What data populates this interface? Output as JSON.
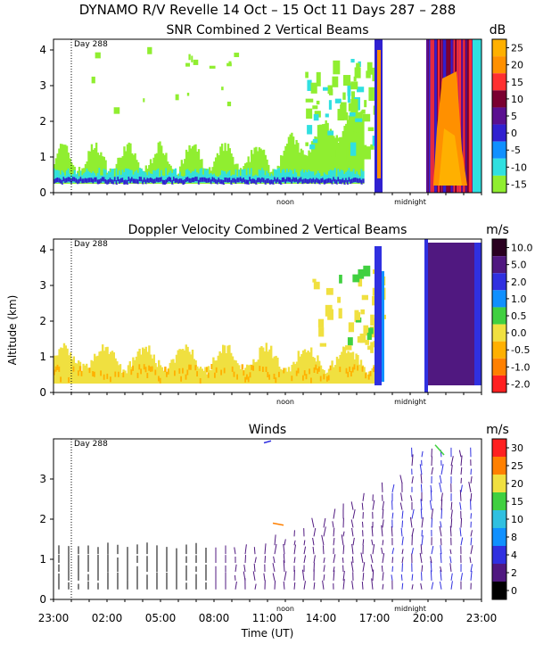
{
  "title": "DYNAMO R/V Revelle  14 Oct – 15 Oct 11 Days 287 – 288",
  "shared": {
    "day_marker": "Day 288",
    "noon_label": "noon",
    "midnight_label": "midnight",
    "ylabel": "Altitude (km)",
    "xlabel": "Time (UT)",
    "time_ticks": [
      "23:00",
      "02:00",
      "05:00",
      "08:00",
      "11:00",
      "14:00",
      "17:00",
      "20:00",
      "23:00"
    ]
  },
  "chart_data": [
    {
      "type": "heatmap",
      "title": "SNR Combined 2 Vertical Beams",
      "units": "dB",
      "ylim": [
        0,
        4.3
      ],
      "yticks": [
        0,
        1,
        2,
        3,
        4
      ],
      "colorbar_labels": [
        "25",
        "20",
        "15",
        "10",
        "5",
        "0",
        "-5",
        "-10",
        "-15"
      ],
      "colorbar_colors": [
        "#ffb000",
        "#ff9000",
        "#ff3030",
        "#7a0030",
        "#5a1090",
        "#3020d0",
        "#1090ff",
        "#30e0e0",
        "#90ee30"
      ]
    },
    {
      "type": "heatmap",
      "title": "Doppler Velocity Combined 2 Vertical Beams",
      "units": "m/s",
      "ylim": [
        0,
        4.3
      ],
      "yticks": [
        0,
        1,
        2,
        3,
        4
      ],
      "colorbar_labels": [
        "10.0",
        "5.0",
        "2.0",
        "1.0",
        "0.5",
        "0.0",
        "-0.5",
        "-1.0",
        "-2.0"
      ],
      "colorbar_colors": [
        "#2a0020",
        "#501880",
        "#3030e0",
        "#1090ff",
        "#40d040",
        "#f0e040",
        "#ffb000",
        "#ff8000",
        "#ff2020"
      ]
    },
    {
      "type": "scatter",
      "title": "Winds",
      "units": "m/s",
      "ylim": [
        0,
        4
      ],
      "yticks": [
        0,
        1,
        2,
        3
      ],
      "colorbar_labels": [
        "30",
        "25",
        "20",
        "15",
        "10",
        "8",
        "4",
        "2",
        "0"
      ],
      "colorbar_colors": [
        "#ff2020",
        "#ff8000",
        "#f0e040",
        "#40d040",
        "#30c0e0",
        "#1090ff",
        "#3030e0",
        "#501880",
        "#000000"
      ]
    }
  ]
}
